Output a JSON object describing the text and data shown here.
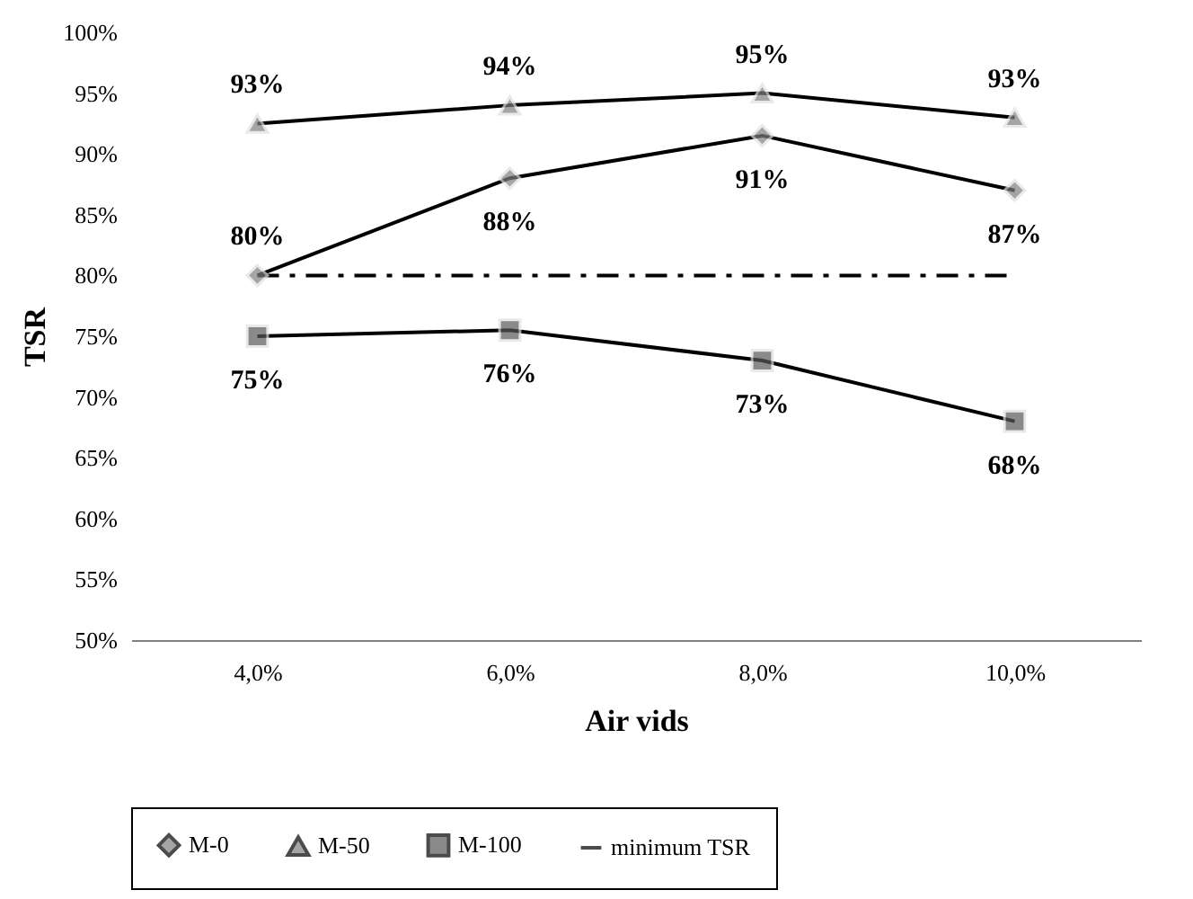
{
  "chart_data": {
    "type": "line",
    "xlabel": "Air vids",
    "ylabel": "TSR",
    "categories": [
      "4,0%",
      "6,0%",
      "8,0%",
      "10,0%"
    ],
    "series": [
      {
        "name": "M-0",
        "color": "#808080",
        "marker": "diamond",
        "values": [
          80,
          88,
          91.5,
          87
        ],
        "value_labels": [
          "80%",
          "88%",
          "91%",
          "87%"
        ]
      },
      {
        "name": "M-50",
        "color": "#808080",
        "marker": "triangle",
        "values": [
          92.5,
          94,
          95,
          93
        ],
        "value_labels": [
          "93%",
          "94%",
          "95%",
          "93%"
        ]
      },
      {
        "name": "M-100",
        "color": "#595959",
        "marker": "square",
        "values": [
          75,
          75.5,
          73,
          68
        ],
        "value_labels": [
          "75%",
          "76%",
          "73%",
          "68%"
        ]
      },
      {
        "name": "minimum TSR",
        "color": "#000000",
        "marker": "none",
        "line_style": "dashed",
        "values": [
          80,
          80,
          80,
          80
        ]
      }
    ],
    "ylim": [
      50,
      100
    ],
    "yticks": [
      {
        "value": 50,
        "label": "50%"
      },
      {
        "value": 55,
        "label": "55%"
      },
      {
        "value": 60,
        "label": "60%"
      },
      {
        "value": 65,
        "label": "65%"
      },
      {
        "value": 70,
        "label": "70%"
      },
      {
        "value": 75,
        "label": "75%"
      },
      {
        "value": 80,
        "label": "80%"
      },
      {
        "value": 85,
        "label": "85%"
      },
      {
        "value": 90,
        "label": "90%"
      },
      {
        "value": 95,
        "label": "95%"
      },
      {
        "value": 100,
        "label": "100%"
      }
    ],
    "grid": false,
    "legend": "bottom"
  }
}
